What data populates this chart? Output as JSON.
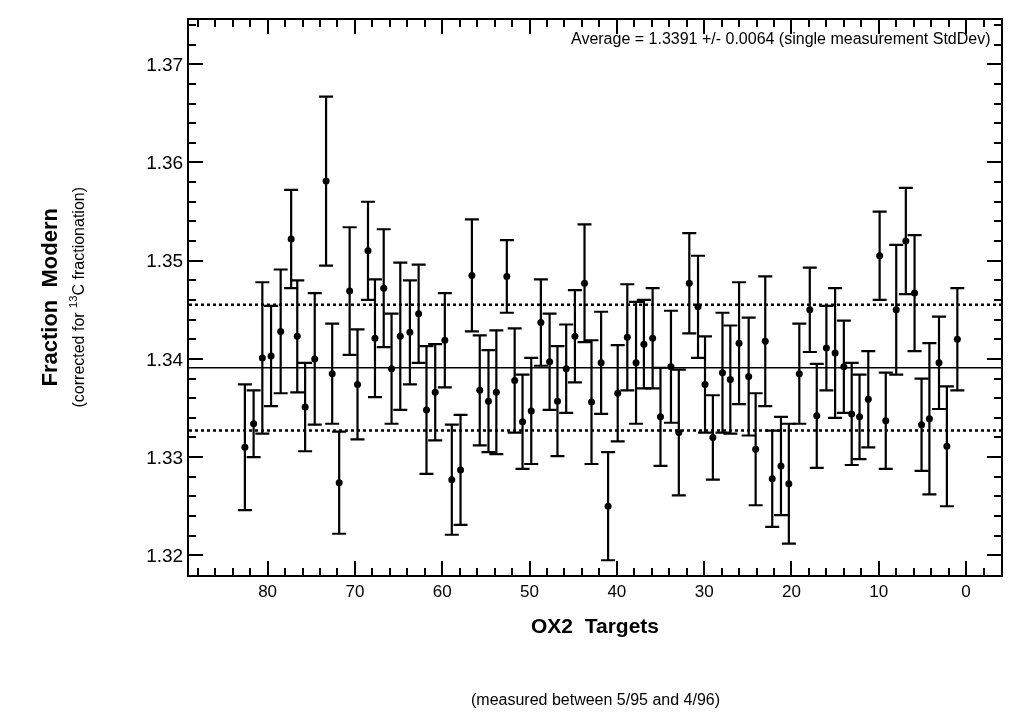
{
  "chart_data": {
    "type": "scatter",
    "xlabel": "OX2  Targets",
    "ylabel": "Fraction  Modern",
    "annotations": [
      "Average = 1.3391 +/- 0.0064 (single measurement StdDev)",
      "(measured between 5/95 and 4/96)",
      "(corrected for $^{13}$C fractionation)"
    ],
    "x": [
      82.6,
      81.6,
      80.6,
      79.6,
      78.5,
      77.3,
      76.6,
      75.7,
      74.6,
      73.3,
      72.6,
      71.8,
      70.6,
      69.7,
      68.5,
      67.7,
      66.7,
      65.8,
      64.8,
      63.7,
      62.7,
      61.8,
      60.8,
      59.7,
      58.9,
      57.9,
      56.6,
      55.7,
      54.7,
      53.8,
      52.6,
      51.7,
      50.8,
      49.8,
      48.7,
      47.7,
      46.8,
      45.8,
      44.8,
      43.7,
      42.9,
      41.8,
      41.0,
      39.9,
      38.8,
      37.8,
      36.9,
      35.9,
      35.0,
      33.8,
      32.9,
      31.7,
      30.7,
      29.9,
      29.0,
      27.9,
      27.0,
      26.0,
      24.9,
      24.1,
      23.0,
      22.2,
      21.2,
      20.3,
      19.1,
      17.9,
      17.1,
      16.0,
      15.0,
      14.0,
      13.1,
      12.2,
      11.2,
      9.9,
      9.2,
      8.0,
      6.9,
      5.9,
      5.1,
      4.2,
      3.1,
      2.2,
      1.0
    ],
    "series": [
      {
        "color": "#000000",
        "values": [
          1.331,
          1.3334,
          1.3401,
          1.3403,
          1.3428,
          1.3522,
          1.3423,
          1.3351,
          1.34,
          1.3581,
          1.3385,
          1.3274,
          1.3469,
          1.3374,
          1.351,
          1.3421,
          1.3472,
          1.339,
          1.3423,
          1.3427,
          1.3446,
          1.3348,
          1.3366,
          1.3419,
          1.3277,
          1.3287,
          1.3485,
          1.3368,
          1.3357,
          1.3366,
          1.3484,
          1.3378,
          1.3336,
          1.3347,
          1.3437,
          1.3397,
          1.3357,
          1.339,
          1.3423,
          1.3477,
          1.3356,
          1.3396,
          1.325,
          1.3365,
          1.3422,
          1.3396,
          1.3415,
          1.3421,
          1.3341,
          1.3392,
          1.3325,
          1.3477,
          1.3453,
          1.3374,
          1.332,
          1.3386,
          1.3379,
          1.3416,
          1.3382,
          1.3308,
          1.3418,
          1.3278,
          1.3291,
          1.3273,
          1.3385,
          1.345,
          1.3342,
          1.3411,
          1.3406,
          1.3392,
          1.3344,
          1.3341,
          1.3359,
          1.3505,
          1.3337,
          1.345,
          1.352,
          1.3467,
          1.3333,
          1.3339,
          1.3396,
          1.3311,
          1.342
        ],
        "errors": [
          0.0064,
          0.0034,
          0.0077,
          0.0051,
          0.0063,
          0.005,
          0.0057,
          0.0045,
          0.0067,
          0.0086,
          0.0051,
          0.0052,
          0.0065,
          0.0056,
          0.005,
          0.006,
          0.006,
          0.0056,
          0.0075,
          0.0053,
          0.005,
          0.0065,
          0.0049,
          0.0048,
          0.0056,
          0.0056,
          0.0057,
          0.0056,
          0.0052,
          0.0063,
          0.0037,
          0.0053,
          0.0048,
          0.0054,
          0.0044,
          0.0049,
          0.0056,
          0.0045,
          0.0047,
          0.006,
          0.0063,
          0.0052,
          0.0055,
          0.0049,
          0.0054,
          0.0062,
          0.0045,
          0.0051,
          0.005,
          0.0057,
          0.0064,
          0.0051,
          0.0052,
          0.0049,
          0.0043,
          0.0061,
          0.0055,
          0.0062,
          0.006,
          0.0057,
          0.0066,
          0.0049,
          0.005,
          0.0061,
          0.0051,
          0.0043,
          0.0053,
          0.0043,
          0.0066,
          0.0047,
          0.0052,
          0.0043,
          0.0049,
          0.0045,
          0.0049,
          0.0066,
          0.0054,
          0.0059,
          0.0047,
          0.0077,
          0.0047,
          0.0061,
          0.0052
        ]
      }
    ],
    "marker": "circle",
    "ref_lines": [
      {
        "axis": "y",
        "value": 1.3391,
        "line_style": "solid",
        "color": "#000000"
      },
      {
        "axis": "y",
        "value": 1.3455,
        "line_style": "dotted",
        "color": "#000000"
      },
      {
        "axis": "y",
        "value": 1.3327,
        "line_style": "dotted",
        "color": "#000000"
      }
    ],
    "xlim": [
      89,
      -4
    ],
    "xticks": [
      {
        "value": 88,
        "label": null
      },
      {
        "value": 86,
        "label": null
      },
      {
        "value": 84,
        "label": null
      },
      {
        "value": 82,
        "label": null
      },
      80,
      {
        "value": 78,
        "label": null
      },
      {
        "value": 76,
        "label": null
      },
      {
        "value": 74,
        "label": null
      },
      {
        "value": 72,
        "label": null
      },
      70,
      {
        "value": 68,
        "label": null
      },
      {
        "value": 66,
        "label": null
      },
      {
        "value": 64,
        "label": null
      },
      {
        "value": 62,
        "label": null
      },
      60,
      {
        "value": 58,
        "label": null
      },
      {
        "value": 56,
        "label": null
      },
      {
        "value": 54,
        "label": null
      },
      {
        "value": 52,
        "label": null
      },
      50,
      {
        "value": 48,
        "label": null
      },
      {
        "value": 46,
        "label": null
      },
      {
        "value": 44,
        "label": null
      },
      {
        "value": 42,
        "label": null
      },
      40,
      {
        "value": 38,
        "label": null
      },
      {
        "value": 36,
        "label": null
      },
      {
        "value": 34,
        "label": null
      },
      {
        "value": 32,
        "label": null
      },
      30,
      {
        "value": 28,
        "label": null
      },
      {
        "value": 26,
        "label": null
      },
      {
        "value": 24,
        "label": null
      },
      {
        "value": 22,
        "label": null
      },
      20,
      {
        "value": 18,
        "label": null
      },
      {
        "value": 16,
        "label": null
      },
      {
        "value": 14,
        "label": null
      },
      {
        "value": 12,
        "label": null
      },
      10,
      {
        "value": 8,
        "label": null
      },
      {
        "value": 6,
        "label": null
      },
      {
        "value": 4,
        "label": null
      },
      {
        "value": 2,
        "label": null
      },
      0,
      {
        "value": -2,
        "label": null
      }
    ],
    "ylim": [
      1.318,
      1.3745
    ],
    "yticks": [
      1.32,
      {
        "value": 1.322,
        "label": null
      },
      {
        "value": 1.324,
        "label": null
      },
      {
        "value": 1.326,
        "label": null
      },
      {
        "value": 1.328,
        "label": null
      },
      1.33,
      {
        "value": 1.332,
        "label": null
      },
      {
        "value": 1.334,
        "label": null
      },
      {
        "value": 1.336,
        "label": null
      },
      {
        "value": 1.338,
        "label": null
      },
      1.34,
      {
        "value": 1.342,
        "label": null
      },
      {
        "value": 1.344,
        "label": null
      },
      {
        "value": 1.346,
        "label": null
      },
      {
        "value": 1.348,
        "label": null
      },
      1.35,
      {
        "value": 1.352,
        "label": null
      },
      {
        "value": 1.354,
        "label": null
      },
      {
        "value": 1.356,
        "label": null
      },
      {
        "value": 1.358,
        "label": null
      },
      1.36,
      {
        "value": 1.362,
        "label": null
      },
      {
        "value": 1.364,
        "label": null
      },
      {
        "value": 1.366,
        "label": null
      },
      {
        "value": 1.368,
        "label": null
      },
      1.37,
      {
        "value": 1.372,
        "label": null
      },
      {
        "value": 1.374,
        "label": null
      }
    ]
  }
}
